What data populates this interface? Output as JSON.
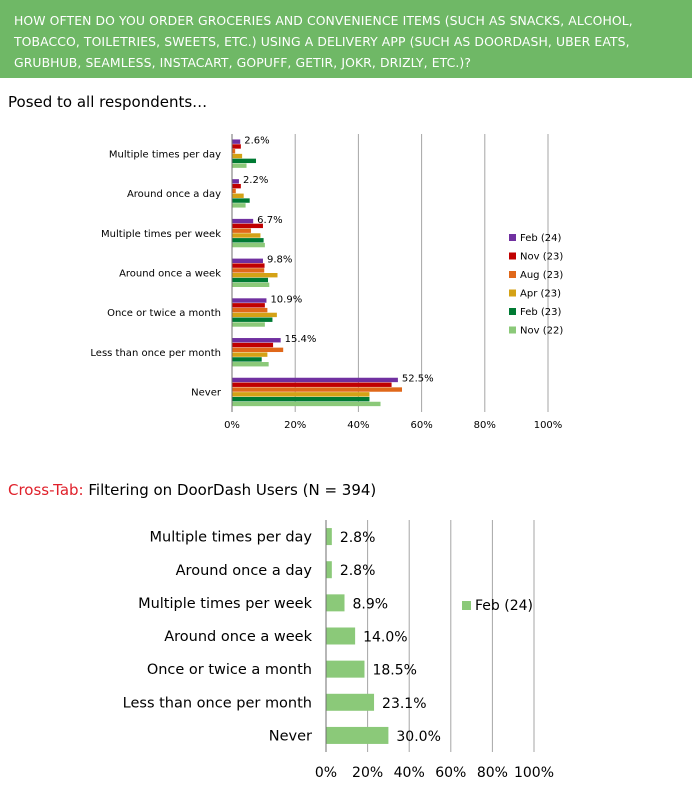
{
  "question": "HOW OFTEN DO YOU ORDER GROCERIES AND CONVENIENCE ITEMS (SUCH AS SNACKS, ALCOHOL, TOBACCO, TOILETRIES, SWEETS, ETC.) USING A DELIVERY APP (SUCH AS DOORDASH, UBER EATS, GRUBHUB, SEAMLESS, INSTACART, GOPUFF, GETIR, JOKR, DRIZLY, ETC.)?",
  "question_lines": [
    "HOW OFTEN DO YOU ORDER GROCERIES AND CONVENIENCE ITEMS (SUCH AS SNACKS, ALCOHOL,",
    "TOBACCO, TOILETRIES, SWEETS, ETC.) USING A DELIVERY APP (SUCH AS DOORDASH, UBER EATS,",
    "GRUBHUB, SEAMLESS, INSTACART, GOPUFF, GETIR, JOKR, DRIZLY, ETC.)?"
  ],
  "section1_title": "Posed to all respondents…",
  "section2": {
    "prefix": "Cross-Tab:",
    "title": " Filtering on DoorDash Users (N = 394)"
  },
  "colors": {
    "banner": "#6fb866",
    "crosstab_red": "#e0202a",
    "grid": "#a6a6a6",
    "axis": "#6f6f6f"
  },
  "chart_data": [
    {
      "type": "bar",
      "orientation": "horizontal",
      "categories": [
        "Multiple times per day",
        "Around once a day",
        "Multiple times per week",
        "Around once a week",
        "Once or twice a month",
        "Less than once per month",
        "Never"
      ],
      "series": [
        {
          "name": "Feb (24)",
          "color": "#7030a0",
          "values": [
            2.6,
            2.2,
            6.7,
            9.8,
            10.9,
            15.4,
            52.5
          ]
        },
        {
          "name": "Nov (23)",
          "color": "#c00000",
          "values": [
            2.8,
            2.8,
            9.8,
            10.3,
            10.4,
            13.0,
            50.5
          ]
        },
        {
          "name": "Aug (23)",
          "color": "#e0681a",
          "values": [
            1.0,
            1.2,
            6.0,
            10.2,
            11.2,
            16.2,
            53.8
          ]
        },
        {
          "name": "Apr (23)",
          "color": "#d4a216",
          "values": [
            3.2,
            3.7,
            9.0,
            14.4,
            14.2,
            11.2,
            43.5
          ]
        },
        {
          "name": "Feb (23)",
          "color": "#007a33",
          "values": [
            7.6,
            5.6,
            10.0,
            11.4,
            12.8,
            9.4,
            43.5
          ]
        },
        {
          "name": "Nov (22)",
          "color": "#8bc979",
          "values": [
            4.6,
            4.3,
            10.4,
            11.8,
            10.4,
            11.6,
            47.0
          ]
        }
      ],
      "data_labels": [
        "2.6%",
        "2.2%",
        "6.7%",
        "9.8%",
        "10.9%",
        "15.4%",
        "52.5%"
      ],
      "xlim": [
        0,
        100
      ],
      "xticks": [
        "0%",
        "20%",
        "40%",
        "60%",
        "80%",
        "100%"
      ],
      "grid": true,
      "legend": "right"
    },
    {
      "type": "bar",
      "orientation": "horizontal",
      "categories": [
        "Multiple times per day",
        "Around once a day",
        "Multiple times per week",
        "Around once a week",
        "Once or twice a month",
        "Less than once per month",
        "Never"
      ],
      "series": [
        {
          "name": "Feb (24)",
          "color": "#8bc979",
          "values": [
            2.8,
            2.8,
            8.9,
            14.0,
            18.5,
            23.1,
            30.0
          ]
        }
      ],
      "data_labels": [
        "2.8%",
        "2.8%",
        "8.9%",
        "14.0%",
        "18.5%",
        "23.1%",
        "30.0%"
      ],
      "xlim": [
        0,
        100
      ],
      "xticks": [
        "0%",
        "20%",
        "40%",
        "60%",
        "80%",
        "100%"
      ],
      "grid": true,
      "legend": "right"
    }
  ]
}
